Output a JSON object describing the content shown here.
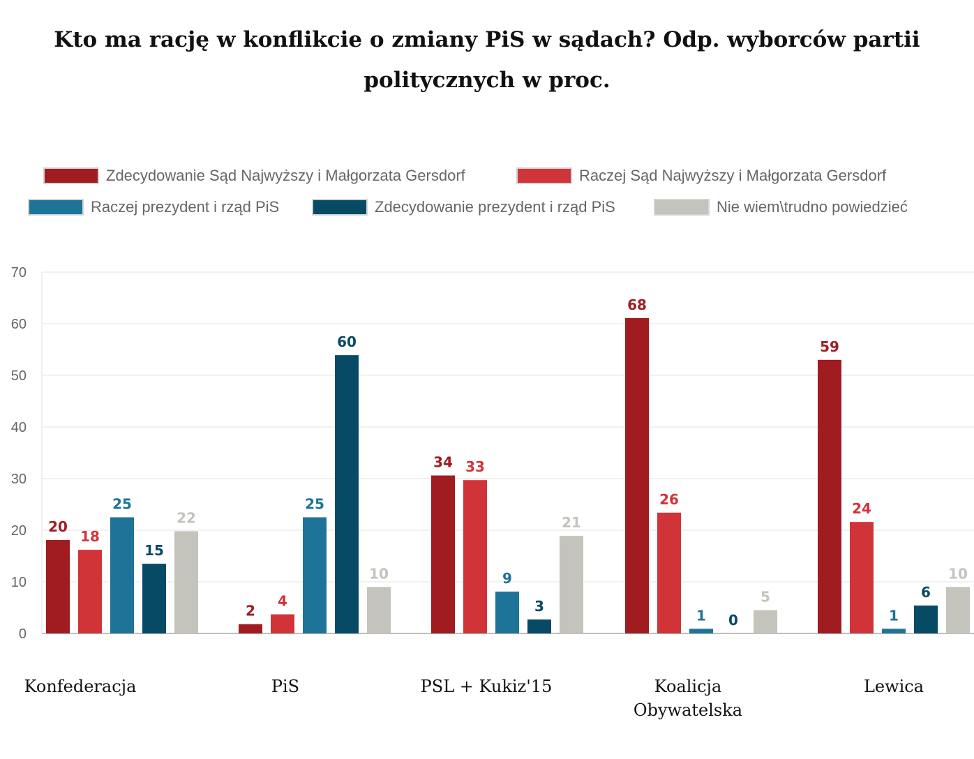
{
  "chart_data": {
    "type": "bar",
    "title": "Kto ma rację w konflikcie o zmiany PiS w sądach? Odp. wyborców partii politycznych w proc.",
    "categories": [
      "Konfederacja",
      "PiS",
      "PSL + Kukiz'15",
      "Koalicja Obywatelska",
      "Lewica"
    ],
    "category_lines": [
      [
        "Konfederacja"
      ],
      [
        "PiS"
      ],
      [
        "PSL + Kukiz'15"
      ],
      [
        "Koalicja",
        "Obywatelska"
      ],
      [
        "Lewica"
      ]
    ],
    "series": [
      {
        "name": "Zdecydowanie Sąd Najwyższy i Małgorzata Gersdorf",
        "color": "#a01c20",
        "values": [
          20,
          2,
          34,
          68,
          59
        ]
      },
      {
        "name": "Raczej Sąd Najwyższy i Małgorzata Gersdorf",
        "color": "#d13438",
        "values": [
          18,
          4,
          33,
          26,
          24
        ]
      },
      {
        "name": "Raczej prezydent i rząd PiS",
        "color": "#1e7399",
        "values": [
          25,
          25,
          9,
          1,
          1
        ]
      },
      {
        "name": "Zdecydowanie prezydent i rząd PiS",
        "color": "#064a66",
        "values": [
          15,
          60,
          3,
          0,
          6
        ]
      },
      {
        "name": "Nie wiem\\trudno powiedzieć",
        "color": "#c4c4bd",
        "values": [
          22,
          10,
          21,
          5,
          10
        ]
      }
    ],
    "bar_heights": [
      [
        18.1,
        1.8,
        30.6,
        61.1,
        53.0
      ],
      [
        16.2,
        3.7,
        29.7,
        23.4,
        21.6
      ],
      [
        22.5,
        22.5,
        8.1,
        0.9,
        0.9
      ],
      [
        13.5,
        53.9,
        2.7,
        0,
        5.4
      ],
      [
        19.8,
        9.0,
        18.9,
        4.5,
        9.0
      ]
    ],
    "ylim": [
      0,
      70
    ],
    "yticks": [
      0,
      10,
      20,
      30,
      40,
      50,
      60,
      70
    ],
    "grid": true,
    "legend_position": "top"
  }
}
